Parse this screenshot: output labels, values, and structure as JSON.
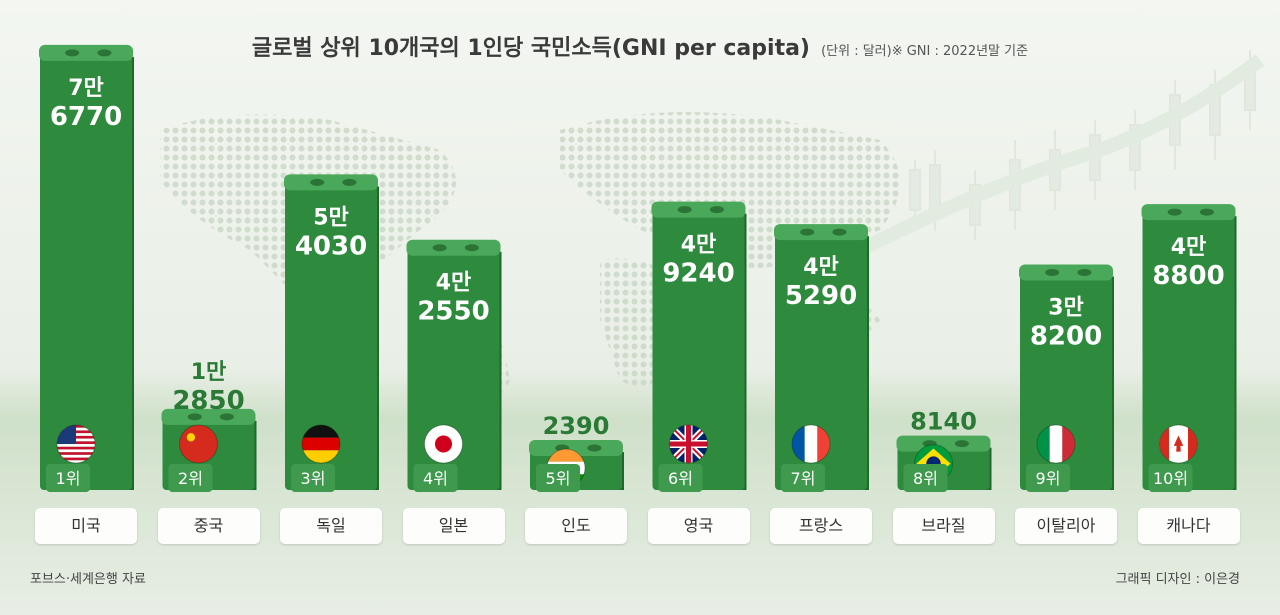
{
  "title": "글로벌 상위 10개국의 1인당 국민소득(GNI per capita)",
  "subtitle": "(단위 : 달러)※ GNI : 2022년말 기준",
  "source": "포브스·세계은행 자료",
  "credit": "그래픽 디자인 : 이은경",
  "colors": {
    "bar": "#2e8a3d",
    "bar_top": "#4aa85a",
    "value_outside": "#2a7a36",
    "value_inside": "#ffffff"
  },
  "chart_data": {
    "type": "bar",
    "title": "글로벌 상위 10개국의 1인당 국민소득(GNI per capita)",
    "unit": "달러",
    "categories": [
      "미국",
      "중국",
      "독일",
      "일본",
      "인도",
      "영국",
      "프랑스",
      "브라질",
      "이탈리아",
      "캐나다"
    ],
    "ranks": [
      "1위",
      "2위",
      "3위",
      "4위",
      "5위",
      "6위",
      "7위",
      "8위",
      "9위",
      "10위"
    ],
    "values": [
      76770,
      12850,
      54030,
      42550,
      2390,
      49240,
      45290,
      8140,
      38200,
      48800
    ],
    "value_labels": [
      [
        "7만",
        "6770"
      ],
      [
        "1만",
        "2850"
      ],
      [
        "5만",
        "4030"
      ],
      [
        "4만",
        "2550"
      ],
      [
        "",
        "2390"
      ],
      [
        "4만",
        "9240"
      ],
      [
        "4만",
        "5290"
      ],
      [
        "",
        "8140"
      ],
      [
        "3만",
        "8200"
      ],
      [
        "4만",
        "8800"
      ]
    ],
    "flag_icons": [
      "us-flag-icon",
      "china-flag-icon",
      "germany-flag-icon",
      "japan-flag-icon",
      "india-flag-icon",
      "uk-flag-icon",
      "france-flag-icon",
      "brazil-flag-icon",
      "italy-flag-icon",
      "canada-flag-icon"
    ],
    "ylim": [
      0,
      80000
    ]
  }
}
